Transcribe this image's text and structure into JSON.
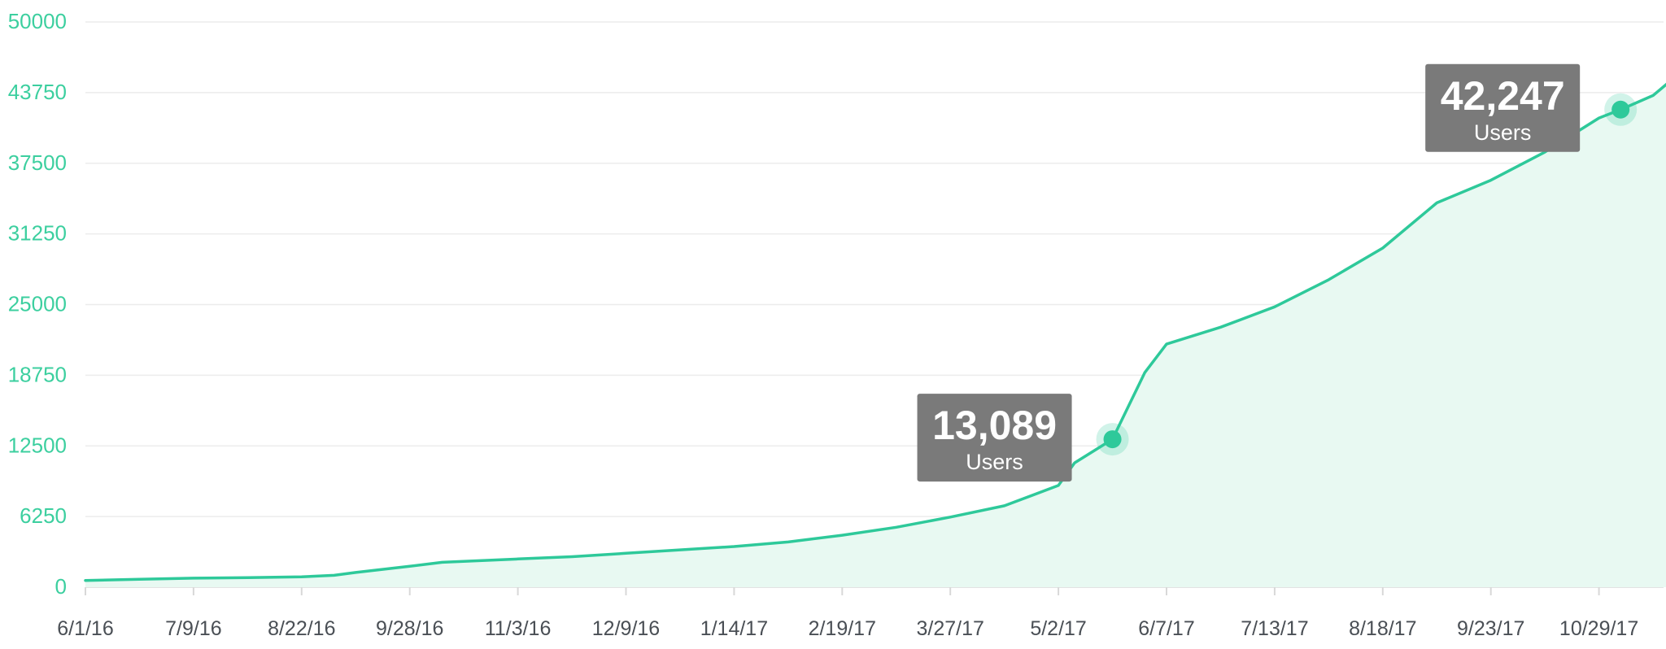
{
  "chart_data": {
    "type": "area",
    "title": "",
    "xlabel": "",
    "ylabel": "",
    "ylim": [
      0,
      50000
    ],
    "grid": true,
    "y_ticks": [
      "0",
      "6250",
      "12500",
      "18750",
      "25000",
      "31250",
      "37500",
      "43750",
      "50000"
    ],
    "x_ticks": [
      "6/1/16",
      "7/9/16",
      "8/22/16",
      "9/28/16",
      "11/3/16",
      "12/9/16",
      "1/14/17",
      "2/19/17",
      "3/27/17",
      "5/2/17",
      "6/7/17",
      "7/13/17",
      "8/18/17",
      "9/23/17",
      "10/29/17"
    ],
    "series": [
      {
        "values": [
          [
            0,
            600
          ],
          [
            0.5,
            700
          ],
          [
            1,
            800
          ],
          [
            1.5,
            850
          ],
          [
            2,
            920
          ],
          [
            2.3,
            1050
          ],
          [
            2.5,
            1300
          ],
          [
            3,
            1850
          ],
          [
            3.3,
            2200
          ],
          [
            4,
            2500
          ],
          [
            4.5,
            2700
          ],
          [
            5,
            3000
          ],
          [
            5.5,
            3300
          ],
          [
            6,
            3600
          ],
          [
            6.5,
            4000
          ],
          [
            7,
            4600
          ],
          [
            7.5,
            5300
          ],
          [
            8,
            6200
          ],
          [
            8.5,
            7200
          ],
          [
            9,
            9000
          ],
          [
            9.15,
            11000
          ],
          [
            9.5,
            13089
          ],
          [
            9.8,
            19000
          ],
          [
            10,
            21500
          ],
          [
            10.5,
            23000
          ],
          [
            11,
            24800
          ],
          [
            11.5,
            27200
          ],
          [
            12,
            30000
          ],
          [
            12.5,
            34000
          ],
          [
            13,
            36000
          ],
          [
            13.5,
            38500
          ],
          [
            14,
            41500
          ],
          [
            14.2,
            42247
          ],
          [
            14.5,
            43500
          ],
          [
            14.75,
            45500
          ]
        ]
      }
    ],
    "annotations": [
      {
        "x": 9.5,
        "y": 13089,
        "value": "13,089",
        "unit": "Users"
      },
      {
        "x": 14.2,
        "y": 42247,
        "value": "42,247",
        "unit": "Users"
      }
    ],
    "colors": {
      "line": "#2ec99a",
      "fill": "#e8f9f2",
      "axis_text_y": "#3ccf9f",
      "axis_text_x": "#4a4f55",
      "grid": "#ececec",
      "tooltip_bg": "#7a7a7a",
      "tooltip_text": "#ffffff"
    }
  }
}
